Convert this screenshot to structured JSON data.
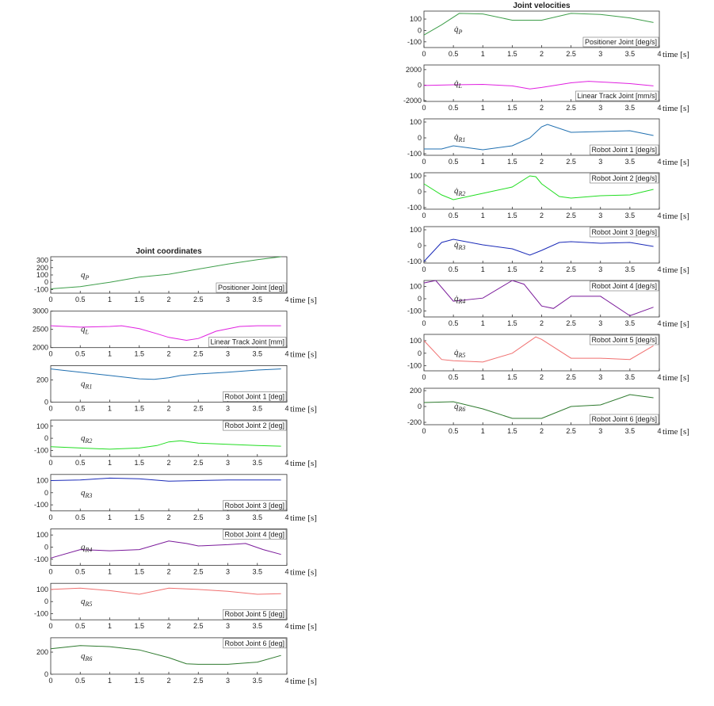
{
  "chart_data": [
    {
      "type": "line",
      "title": "Joint coordinates",
      "label": "Positioner Joint [deg]",
      "label_corner": "lower right",
      "symbol": "q",
      "symbol_sub": "P",
      "xlabel": "time [s]",
      "color": "#3e9e4a",
      "xlim": [
        0,
        4
      ],
      "xticks": [
        0,
        0.5,
        1,
        1.5,
        2,
        2.5,
        3,
        3.5,
        4
      ],
      "ylim": [
        -150,
        350
      ],
      "yticks": [
        -100,
        0,
        100,
        200,
        300
      ],
      "x": [
        0,
        0.5,
        1,
        1.5,
        2,
        2.5,
        3,
        3.5,
        3.9
      ],
      "values": [
        -90,
        -60,
        0,
        70,
        110,
        180,
        250,
        310,
        350
      ]
    },
    {
      "type": "line",
      "label": "Linear Track Joint [mm]",
      "label_corner": "lower right",
      "symbol": "q",
      "symbol_sub": "L",
      "xlabel": "time [s]",
      "color": "#e020e0",
      "xlim": [
        0,
        4
      ],
      "xticks": [
        0,
        0.5,
        1,
        1.5,
        2,
        2.5,
        3,
        3.5,
        4
      ],
      "ylim": [
        2000,
        3000
      ],
      "yticks": [
        2000,
        2500,
        3000
      ],
      "x": [
        0,
        0.5,
        1,
        1.2,
        1.5,
        1.8,
        2,
        2.3,
        2.5,
        2.8,
        3.2,
        3.5,
        3.9
      ],
      "values": [
        2600,
        2560,
        2580,
        2600,
        2520,
        2380,
        2280,
        2200,
        2250,
        2450,
        2580,
        2600,
        2600
      ]
    },
    {
      "type": "line",
      "label": "Robot Joint 1 [deg]",
      "label_corner": "lower right",
      "symbol": "q",
      "symbol_sub": "R1",
      "xlabel": "time [s]",
      "color": "#1f6fb0",
      "xlim": [
        0,
        4
      ],
      "xticks": [
        0,
        0.5,
        1,
        1.5,
        2,
        2.5,
        3,
        3.5,
        4
      ],
      "ylim": [
        0,
        330
      ],
      "yticks": [
        0,
        200
      ],
      "x": [
        0,
        0.5,
        1,
        1.5,
        1.75,
        2,
        2.2,
        2.5,
        3,
        3.5,
        3.9
      ],
      "values": [
        300,
        270,
        240,
        210,
        205,
        220,
        240,
        255,
        270,
        290,
        300
      ]
    },
    {
      "type": "line",
      "label": "Robot Joint 2 [deg]",
      "label_corner": "upper right",
      "symbol": "q",
      "symbol_sub": "R2",
      "xlabel": "time [s]",
      "color": "#22dd22",
      "xlim": [
        0,
        4
      ],
      "xticks": [
        0,
        0.5,
        1,
        1.5,
        2,
        2.5,
        3,
        3.5,
        4
      ],
      "ylim": [
        -150,
        150
      ],
      "yticks": [
        -100,
        0,
        100
      ],
      "x": [
        0,
        0.5,
        1,
        1.5,
        1.8,
        2,
        2.2,
        2.5,
        3,
        3.5,
        3.9
      ],
      "values": [
        -70,
        -80,
        -90,
        -80,
        -60,
        -30,
        -20,
        -40,
        -50,
        -60,
        -65
      ]
    },
    {
      "type": "line",
      "label": "Robot Joint 3 [deg]",
      "label_corner": "lower right",
      "symbol": "q",
      "symbol_sub": "R3",
      "xlabel": "time [s]",
      "color": "#1a2ab8",
      "xlim": [
        0,
        4
      ],
      "xticks": [
        0,
        0.5,
        1,
        1.5,
        2,
        2.5,
        3,
        3.5,
        4
      ],
      "ylim": [
        -150,
        150
      ],
      "yticks": [
        -100,
        0,
        100
      ],
      "x": [
        0,
        0.5,
        1,
        1.5,
        2,
        2.5,
        3,
        3.9
      ],
      "values": [
        100,
        105,
        120,
        115,
        95,
        100,
        105,
        105
      ]
    },
    {
      "type": "line",
      "label": "Robot Joint 4 [deg]",
      "label_corner": "upper right",
      "symbol": "q",
      "symbol_sub": "R4",
      "xlabel": "time [s]",
      "color": "#7a1a9a",
      "xlim": [
        0,
        4
      ],
      "xticks": [
        0,
        0.5,
        1,
        1.5,
        2,
        2.5,
        3,
        3.5,
        4
      ],
      "ylim": [
        -150,
        150
      ],
      "yticks": [
        -100,
        0,
        100
      ],
      "x": [
        0,
        0.5,
        1,
        1.5,
        2,
        2.3,
        2.5,
        3,
        3.3,
        3.6,
        3.9
      ],
      "values": [
        -90,
        -20,
        -30,
        -20,
        50,
        30,
        10,
        20,
        30,
        -20,
        -60
      ]
    },
    {
      "type": "line",
      "label": "Robot Joint 5 [deg]",
      "label_corner": "lower right",
      "symbol": "q",
      "symbol_sub": "R5",
      "xlabel": "time [s]",
      "color": "#f07070",
      "xlim": [
        0,
        4
      ],
      "xticks": [
        0,
        0.5,
        1,
        1.5,
        2,
        2.5,
        3,
        3.5,
        4
      ],
      "ylim": [
        -150,
        150
      ],
      "yticks": [
        -100,
        0,
        100
      ],
      "x": [
        0,
        0.5,
        1,
        1.5,
        2,
        2.5,
        3,
        3.5,
        3.9
      ],
      "values": [
        100,
        110,
        90,
        60,
        110,
        100,
        85,
        60,
        65
      ]
    },
    {
      "type": "line",
      "label": "Robot Joint 6 [deg]",
      "label_corner": "upper right",
      "symbol": "q",
      "symbol_sub": "R6",
      "xlabel": "time [s]",
      "color": "#2e7a2e",
      "xlim": [
        0,
        4
      ],
      "xticks": [
        0,
        0.5,
        1,
        1.5,
        2,
        2.5,
        3,
        3.5,
        4
      ],
      "ylim": [
        0,
        330
      ],
      "yticks": [
        0,
        200
      ],
      "x": [
        0,
        0.5,
        1,
        1.5,
        2,
        2.3,
        2.5,
        3,
        3.5,
        3.9
      ],
      "values": [
        230,
        260,
        250,
        220,
        150,
        95,
        90,
        90,
        110,
        170
      ]
    },
    {
      "type": "line",
      "title": "Joint velocities",
      "label": "Positioner Joint [deg/s]",
      "label_corner": "lower right",
      "symbol": "q̇",
      "symbol_sub": "P",
      "xlabel": "time [s]",
      "color": "#3e9e4a",
      "xlim": [
        0,
        4
      ],
      "xticks": [
        0,
        0.5,
        1,
        1.5,
        2,
        2.5,
        3,
        3.5,
        4
      ],
      "ylim": [
        -150,
        170
      ],
      "yticks": [
        -100,
        0,
        100
      ],
      "x": [
        0,
        0.3,
        0.6,
        1,
        1.5,
        2,
        2.5,
        3,
        3.5,
        3.9
      ],
      "values": [
        -40,
        50,
        150,
        145,
        90,
        90,
        150,
        140,
        110,
        70
      ]
    },
    {
      "type": "line",
      "label": "Linear Track Joint [mm/s]",
      "label_corner": "lower right",
      "symbol": "q̇",
      "symbol_sub": "L",
      "xlabel": "time [s]",
      "color": "#e020e0",
      "xlim": [
        0,
        4
      ],
      "xticks": [
        0,
        0.5,
        1,
        1.5,
        2,
        2.5,
        3,
        3.5,
        4
      ],
      "ylim": [
        -2100,
        2600
      ],
      "yticks": [
        -2000,
        0,
        2000
      ],
      "x": [
        0,
        0.5,
        1,
        1.5,
        1.8,
        2,
        2.5,
        2.8,
        3.5,
        3.9
      ],
      "values": [
        -50,
        50,
        100,
        -100,
        -500,
        -300,
        300,
        500,
        200,
        -100
      ]
    },
    {
      "type": "line",
      "label": "Robot Joint 1 [deg/s]",
      "label_corner": "lower right",
      "symbol": "q̇",
      "symbol_sub": "R1",
      "xlabel": "time [s]",
      "color": "#1f6fb0",
      "xlim": [
        0,
        4
      ],
      "xticks": [
        0,
        0.5,
        1,
        1.5,
        2,
        2.5,
        3,
        3.5,
        4
      ],
      "ylim": [
        -110,
        120
      ],
      "yticks": [
        -100,
        0,
        100
      ],
      "x": [
        0,
        0.3,
        0.5,
        1,
        1.5,
        1.8,
        2,
        2.1,
        2.5,
        3,
        3.5,
        3.9
      ],
      "values": [
        -70,
        -70,
        -50,
        -75,
        -50,
        0,
        70,
        85,
        35,
        40,
        45,
        15
      ]
    },
    {
      "type": "line",
      "label": "Robot Joint 2 [deg/s]",
      "label_corner": "upper right",
      "symbol": "q̇",
      "symbol_sub": "R2",
      "xlabel": "time [s]",
      "color": "#22dd22",
      "xlim": [
        0,
        4
      ],
      "xticks": [
        0,
        0.5,
        1,
        1.5,
        2,
        2.5,
        3,
        3.5,
        4
      ],
      "ylim": [
        -110,
        120
      ],
      "yticks": [
        -100,
        0,
        100
      ],
      "x": [
        0,
        0.3,
        0.5,
        1,
        1.5,
        1.8,
        1.9,
        2,
        2.3,
        2.5,
        3,
        3.5,
        3.9
      ],
      "values": [
        50,
        -20,
        -50,
        -10,
        30,
        100,
        95,
        50,
        -30,
        -40,
        -25,
        -20,
        15
      ]
    },
    {
      "type": "line",
      "label": "Robot Joint 3 [deg/s]",
      "label_corner": "upper right",
      "symbol": "q̇",
      "symbol_sub": "R3",
      "xlabel": "time [s]",
      "color": "#1a2ab8",
      "xlim": [
        0,
        4
      ],
      "xticks": [
        0,
        0.5,
        1,
        1.5,
        2,
        2.5,
        3,
        3.5,
        4
      ],
      "ylim": [
        -110,
        120
      ],
      "yticks": [
        -100,
        0,
        100
      ],
      "x": [
        0,
        0.3,
        0.5,
        1,
        1.5,
        1.8,
        2,
        2.3,
        2.5,
        3,
        3.5,
        3.9
      ],
      "values": [
        -100,
        20,
        40,
        5,
        -20,
        -60,
        -30,
        20,
        25,
        15,
        20,
        -5
      ]
    },
    {
      "type": "line",
      "label": "Robot Joint 4 [deg/s]",
      "label_corner": "upper right",
      "symbol": "q̇",
      "symbol_sub": "R4",
      "xlabel": "time [s]",
      "color": "#7a1a9a",
      "xlim": [
        0,
        4
      ],
      "xticks": [
        0,
        0.5,
        1,
        1.5,
        2,
        2.5,
        3,
        3.5,
        4
      ],
      "ylim": [
        -150,
        150
      ],
      "yticks": [
        -100,
        0,
        100
      ],
      "x": [
        0,
        0.2,
        0.5,
        1,
        1.5,
        1.7,
        2,
        2.2,
        2.5,
        3,
        3.5,
        3.9
      ],
      "values": [
        130,
        150,
        -20,
        5,
        150,
        120,
        -60,
        -80,
        20,
        20,
        -140,
        -70
      ]
    },
    {
      "type": "line",
      "label": "Robot Joint 5 [deg/s]",
      "label_corner": "upper right",
      "symbol": "q̇",
      "symbol_sub": "R5",
      "xlabel": "time [s]",
      "color": "#f07070",
      "xlim": [
        0,
        4
      ],
      "xticks": [
        0,
        0.5,
        1,
        1.5,
        2,
        2.5,
        3,
        3.5,
        4
      ],
      "ylim": [
        -140,
        150
      ],
      "yticks": [
        -100,
        0,
        100
      ],
      "x": [
        0,
        0.3,
        0.5,
        1,
        1.5,
        1.9,
        2,
        2.5,
        3,
        3.5,
        3.9
      ],
      "values": [
        100,
        -50,
        -60,
        -70,
        0,
        130,
        110,
        -40,
        -40,
        -50,
        60
      ]
    },
    {
      "type": "line",
      "label": "Robot Joint 6 [deg/s]",
      "label_corner": "lower right",
      "symbol": "q̇",
      "symbol_sub": "R6",
      "xlabel": "time [s]",
      "color": "#2e7a2e",
      "xlim": [
        0,
        4
      ],
      "xticks": [
        0,
        0.5,
        1,
        1.5,
        2,
        2.5,
        3,
        3.5,
        4
      ],
      "ylim": [
        -230,
        230
      ],
      "yticks": [
        -200,
        0,
        200
      ],
      "x": [
        0,
        0.5,
        1,
        1.5,
        2,
        2.5,
        3,
        3.5,
        3.9
      ],
      "values": [
        50,
        60,
        -30,
        -150,
        -150,
        0,
        20,
        150,
        110
      ]
    }
  ]
}
